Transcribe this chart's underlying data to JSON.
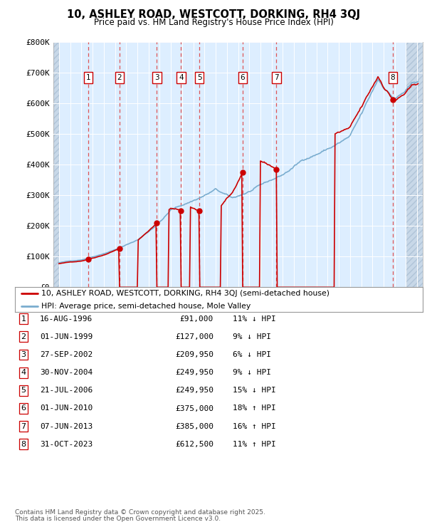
{
  "title_line1": "10, ASHLEY ROAD, WESTCOTT, DORKING, RH4 3QJ",
  "title_line2": "Price paid vs. HM Land Registry's House Price Index (HPI)",
  "transactions": [
    {
      "num": 1,
      "date": "16-AUG-1996",
      "year": 1996.62,
      "price": 91000,
      "pct": "11%",
      "dir": "↓"
    },
    {
      "num": 2,
      "date": "01-JUN-1999",
      "year": 1999.41,
      "price": 127000,
      "pct": "9%",
      "dir": "↓"
    },
    {
      "num": 3,
      "date": "27-SEP-2002",
      "year": 2002.74,
      "price": 209950,
      "pct": "6%",
      "dir": "↓"
    },
    {
      "num": 4,
      "date": "30-NOV-2004",
      "year": 2004.91,
      "price": 249950,
      "pct": "9%",
      "dir": "↓"
    },
    {
      "num": 5,
      "date": "21-JUL-2006",
      "year": 2006.55,
      "price": 249950,
      "pct": "15%",
      "dir": "↓"
    },
    {
      "num": 6,
      "date": "01-JUN-2010",
      "year": 2010.41,
      "price": 375000,
      "pct": "18%",
      "dir": "↑"
    },
    {
      "num": 7,
      "date": "07-JUN-2013",
      "year": 2013.43,
      "price": 385000,
      "pct": "16%",
      "dir": "↑"
    },
    {
      "num": 8,
      "date": "31-OCT-2023",
      "year": 2023.83,
      "price": 612500,
      "pct": "11%",
      "dir": "↑"
    }
  ],
  "legend_line1": "10, ASHLEY ROAD, WESTCOTT, DORKING, RH4 3QJ (semi-detached house)",
  "legend_line2": "HPI: Average price, semi-detached house, Mole Valley",
  "footer_line1": "Contains HM Land Registry data © Crown copyright and database right 2025.",
  "footer_line2": "This data is licensed under the Open Government Licence v3.0.",
  "price_color": "#cc0000",
  "hpi_color": "#7aadcf",
  "background_chart": "#ddeeff",
  "ylim": [
    0,
    800000
  ],
  "xlim_start": 1993.5,
  "xlim_end": 2026.5
}
